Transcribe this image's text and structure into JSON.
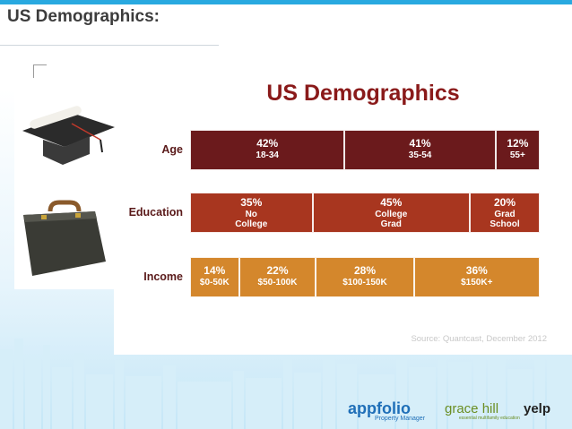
{
  "slide": {
    "title": "US Demographics:"
  },
  "chart_data": {
    "type": "bar",
    "subtype": "stacked-100-horizontal",
    "title": "US Demographics",
    "source": "Source: Quantcast, December 2012",
    "rows": [
      {
        "label": "Age",
        "color": "#6b1a1c",
        "segments": [
          {
            "value": 42,
            "pct_label": "42%",
            "category": "18-34"
          },
          {
            "value": 41,
            "pct_label": "41%",
            "category": "35-54"
          },
          {
            "value": 12,
            "pct_label": "12%",
            "category": "55+"
          }
        ]
      },
      {
        "label": "Education",
        "color": "#a8361f",
        "segments": [
          {
            "value": 35,
            "pct_label": "35%",
            "category": "No\nCollege"
          },
          {
            "value": 45,
            "pct_label": "45%",
            "category": "College\nGrad"
          },
          {
            "value": 20,
            "pct_label": "20%",
            "category": "Grad\nSchool"
          }
        ]
      },
      {
        "label": "Income",
        "color": "#d4872c",
        "segments": [
          {
            "value": 14,
            "pct_label": "14%",
            "category": "$0-50K"
          },
          {
            "value": 22,
            "pct_label": "22%",
            "category": "$50-100K"
          },
          {
            "value": 28,
            "pct_label": "28%",
            "category": "$100-150K"
          },
          {
            "value": 36,
            "pct_label": "36%",
            "category": "$150K+"
          }
        ]
      }
    ]
  },
  "logos": {
    "appfolio": "appfolio",
    "appfolio_sub": "Property Manager",
    "gracehill": "grace hill",
    "gracehill_sub": "essential multifamily education",
    "yelp": "yelp"
  },
  "icons": {
    "graduation": "graduation-cap-icon",
    "briefcase": "briefcase-icon"
  }
}
